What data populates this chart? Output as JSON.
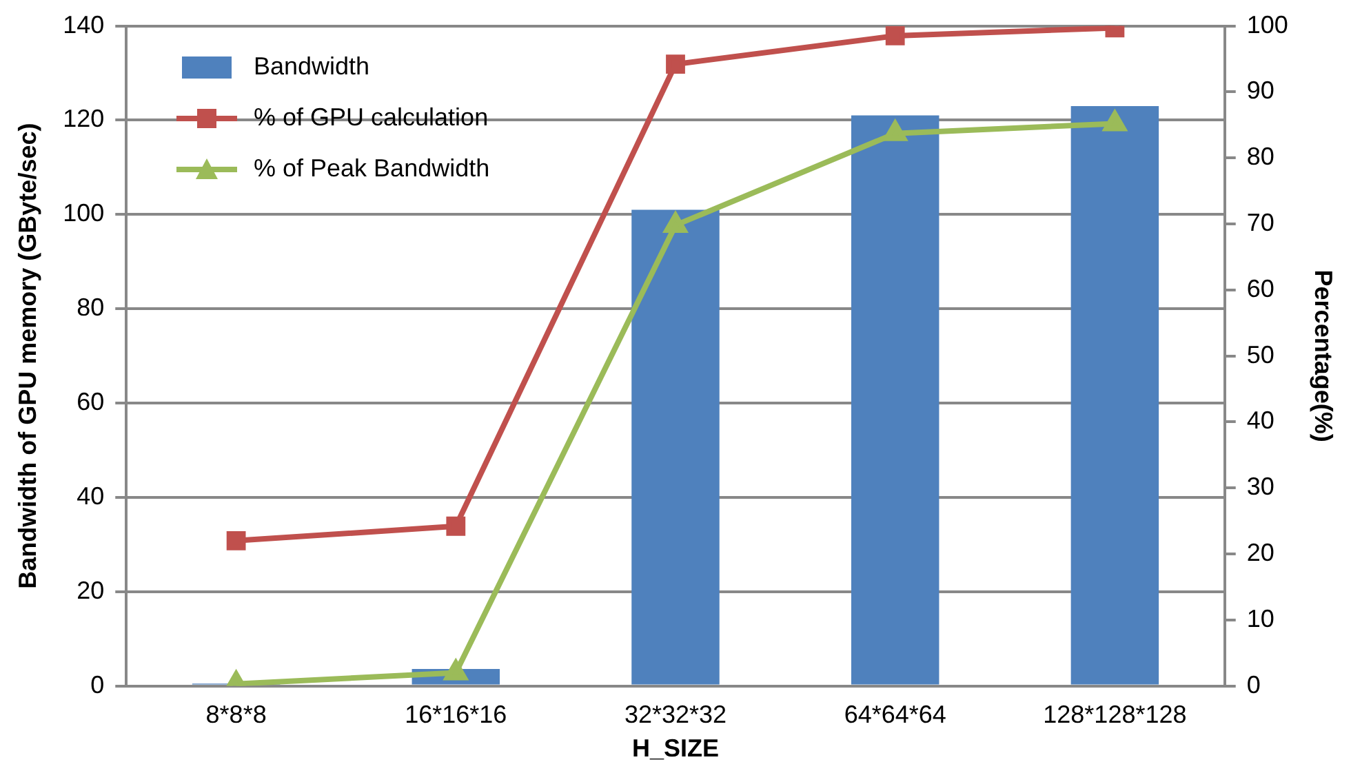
{
  "chart_data": {
    "type": "bar",
    "categories": [
      "8*8*8",
      "16*16*16",
      "32*32*32",
      "64*64*64",
      "128*128*128"
    ],
    "xlabel": "H_SIZE",
    "ylabel": "Bandwidth of GPU memory (GByte/sec)",
    "y2label": "Percentage(%)",
    "series": [
      {
        "name": "Bandwidth",
        "color": "#4f81bd",
        "values": [
          0.5,
          3.6,
          101,
          121,
          123
        ]
      },
      {
        "name": "% of GPU calculation",
        "type": "line",
        "axis": "y2",
        "marker": "square",
        "color": "#c0504d",
        "values": [
          22,
          24.2,
          94.2,
          98.5,
          99.7
        ]
      },
      {
        "name": "% of Peak Bandwidth",
        "type": "line",
        "axis": "y2",
        "marker": "triangle",
        "color": "#9bbb59",
        "values": [
          0.3,
          2,
          69.8,
          83.7,
          85.2
        ]
      }
    ],
    "ylim": [
      0,
      140
    ],
    "yticks": [
      0,
      20,
      40,
      60,
      80,
      100,
      120,
      140
    ],
    "y2lim": [
      0,
      100
    ],
    "y2ticks": [
      0,
      10,
      20,
      30,
      40,
      50,
      60,
      70,
      80,
      90,
      100
    ],
    "grid": "y",
    "legend": "top left"
  }
}
